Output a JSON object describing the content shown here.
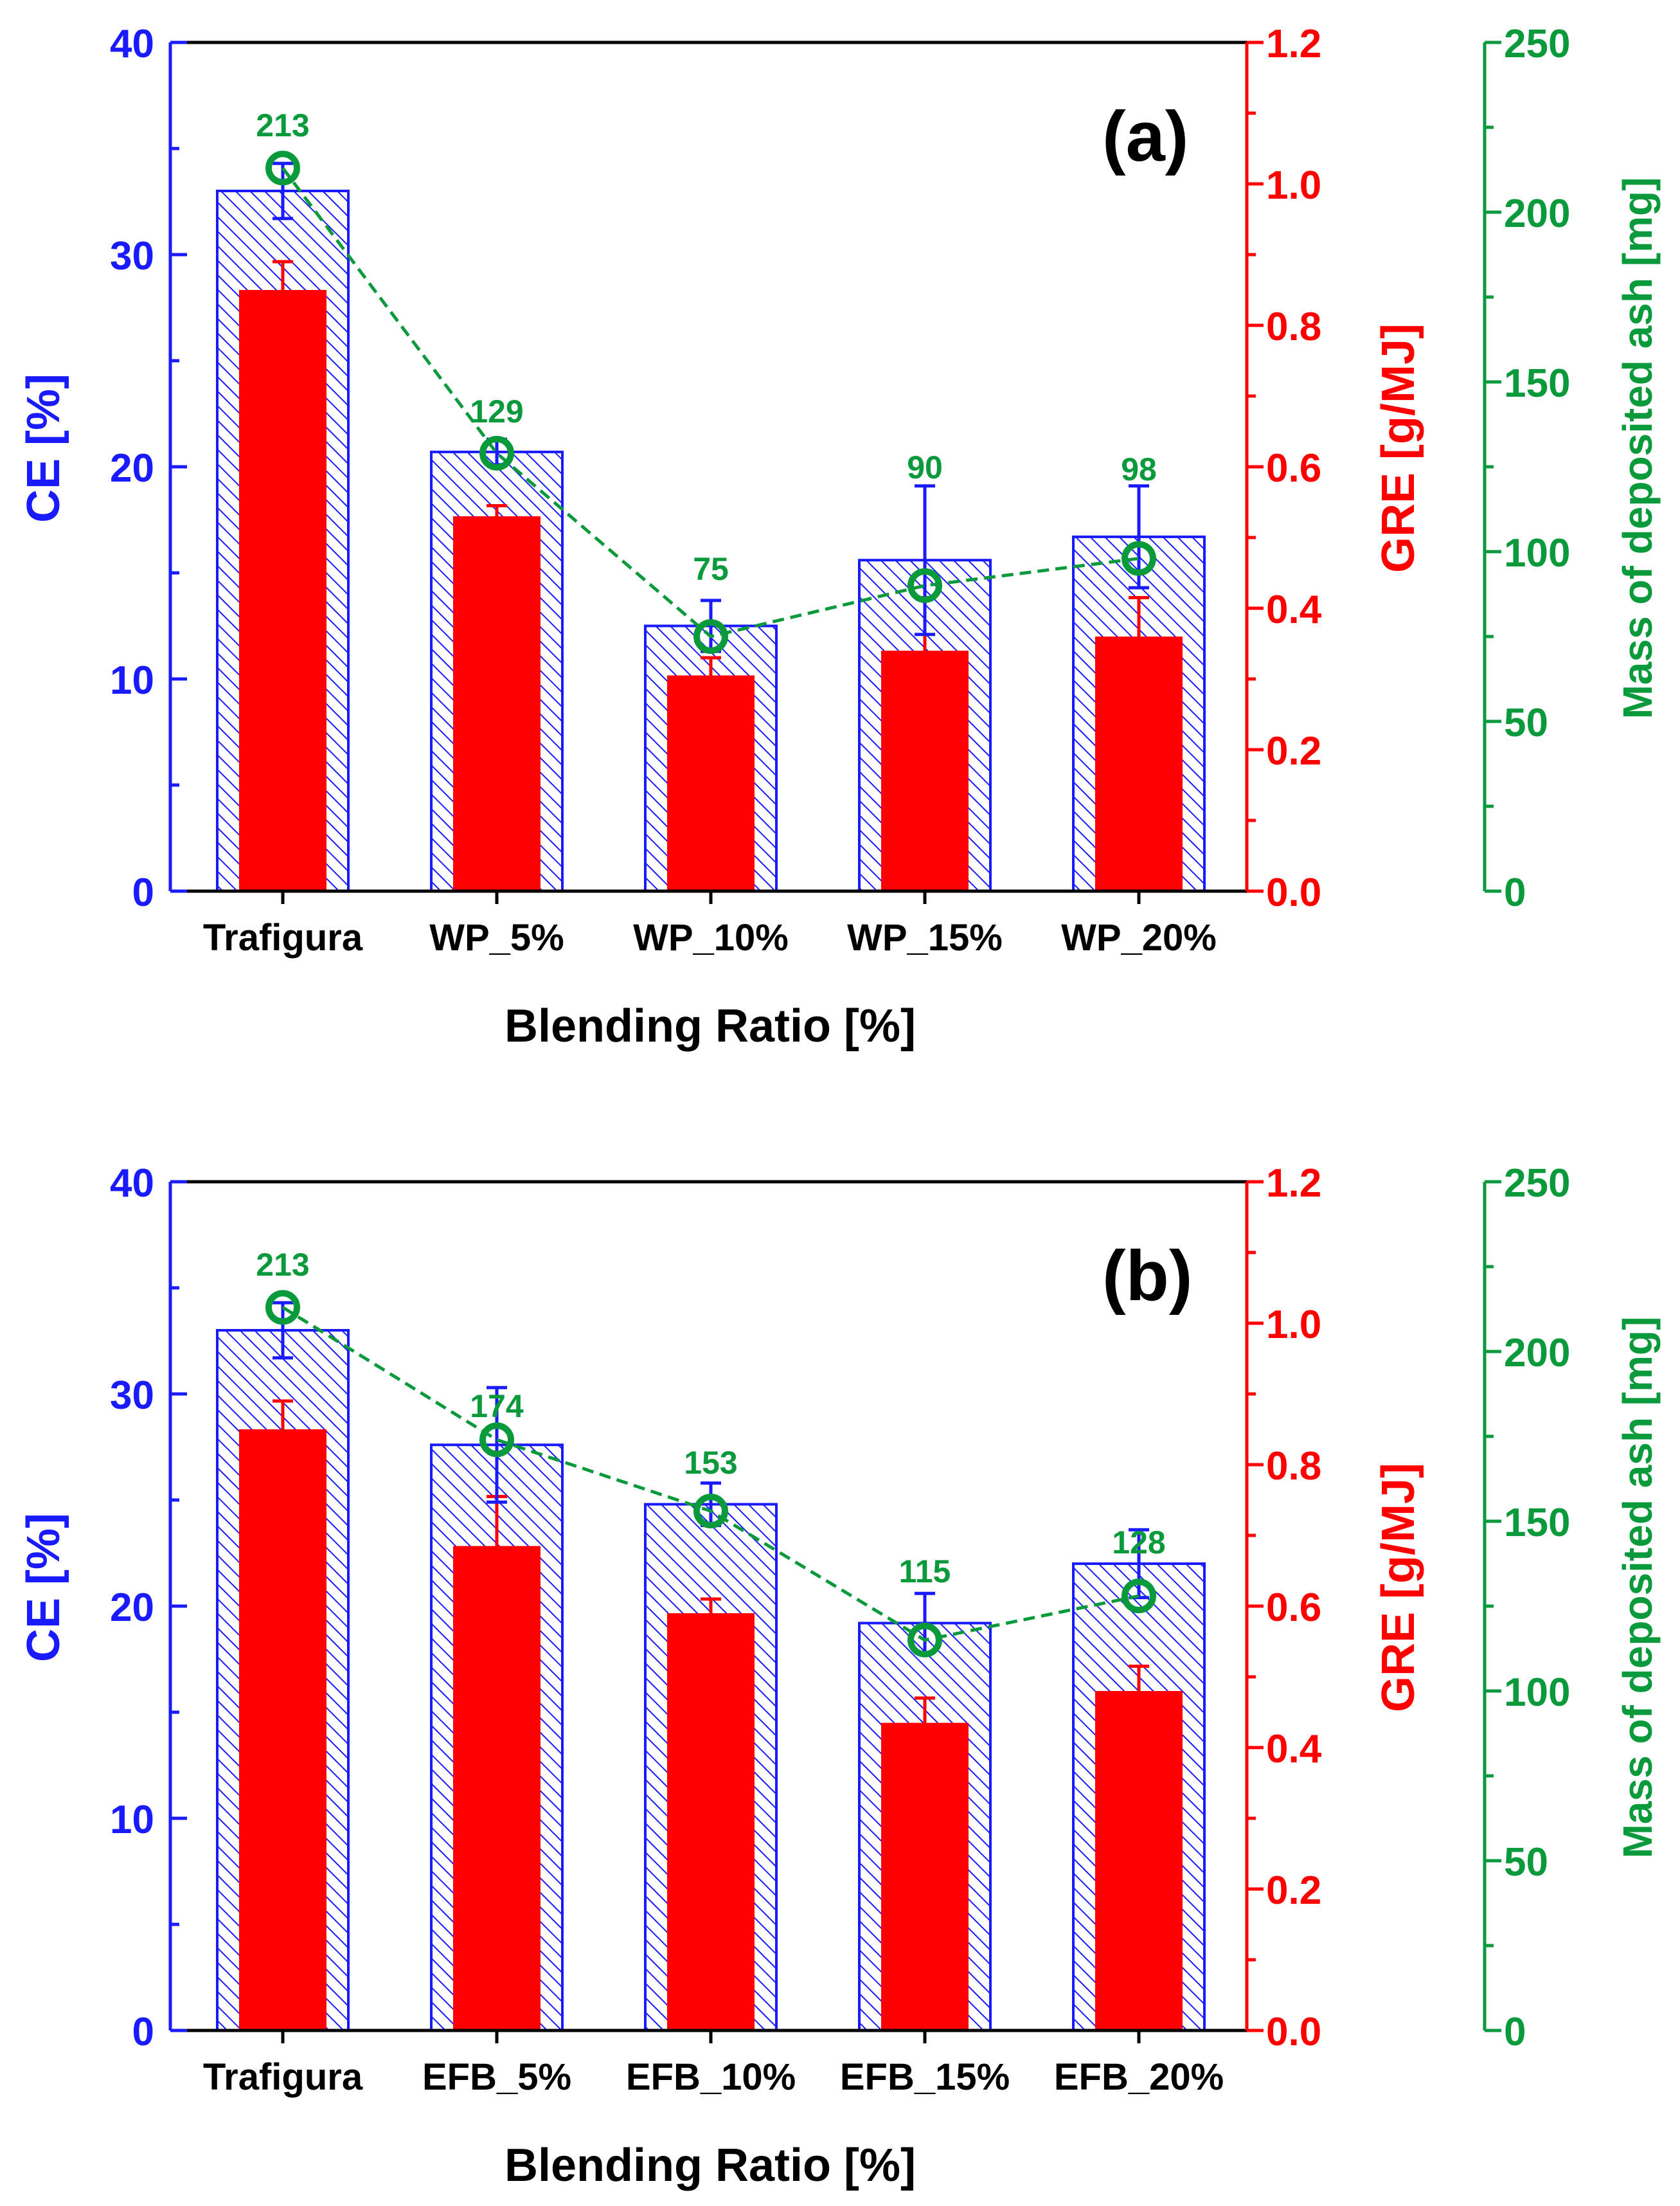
{
  "colors": {
    "ce": "#1a1aff",
    "gre": "#ff0000",
    "ash": "#0a9a3c",
    "axis": "#000000"
  },
  "chart_data": [
    {
      "type": "bar",
      "panel_label": "(a)",
      "xlabel": "Blending Ratio [%]",
      "categories": [
        "Trafigura",
        "WP_5%",
        "WP_10%",
        "WP_15%",
        "WP_20%"
      ],
      "axes": {
        "ce": {
          "label": "CE [%]",
          "range": [
            0,
            40
          ],
          "ticks": [
            0,
            10,
            20,
            30,
            40
          ],
          "tick_labels": [
            "0",
            "10",
            "20",
            "30",
            "40"
          ]
        },
        "gre": {
          "label": "GRE [g/MJ]",
          "range": [
            0,
            1.2
          ],
          "ticks": [
            0,
            0.2,
            0.4,
            0.6,
            0.8,
            1.0,
            1.2
          ],
          "tick_labels": [
            "0.0",
            "0.2",
            "0.4",
            "0.6",
            "0.8",
            "1.0",
            "1.2"
          ]
        },
        "ash": {
          "label": "Mass of deposited ash [mg]",
          "range": [
            0,
            250
          ],
          "ticks": [
            0,
            50,
            100,
            150,
            200,
            250
          ],
          "tick_labels": [
            "0",
            "50",
            "100",
            "150",
            "200",
            "250"
          ]
        }
      },
      "series": [
        {
          "key": "ce",
          "style": "hatched-bar",
          "values": [
            33.0,
            20.7,
            12.5,
            15.6,
            16.7
          ],
          "errors": [
            1.3,
            0.6,
            1.2,
            3.5,
            2.4
          ]
        },
        {
          "key": "gre",
          "style": "solid-bar",
          "values": [
            0.85,
            0.53,
            0.305,
            0.34,
            0.36
          ],
          "errors": [
            0.04,
            0.015,
            0.025,
            0.075,
            0.055
          ]
        },
        {
          "key": "ash",
          "style": "dashed-line-circle",
          "values": [
            213,
            129,
            75,
            90,
            98
          ],
          "value_labels": [
            "213",
            "129",
            "75",
            "90",
            "98"
          ]
        }
      ]
    },
    {
      "type": "bar",
      "panel_label": "(b)",
      "xlabel": "Blending Ratio [%]",
      "categories": [
        "Trafigura",
        "EFB_5%",
        "EFB_10%",
        "EFB_15%",
        "EFB_20%"
      ],
      "axes": {
        "ce": {
          "label": "CE [%]",
          "range": [
            0,
            40
          ],
          "ticks": [
            0,
            10,
            20,
            30,
            40
          ],
          "tick_labels": [
            "0",
            "10",
            "20",
            "30",
            "40"
          ]
        },
        "gre": {
          "label": "GRE [g/MJ]",
          "range": [
            0,
            1.2
          ],
          "ticks": [
            0,
            0.2,
            0.4,
            0.6,
            0.8,
            1.0,
            1.2
          ],
          "tick_labels": [
            "0.0",
            "0.2",
            "0.4",
            "0.6",
            "0.8",
            "1.0",
            "1.2"
          ]
        },
        "ash": {
          "label": "Mass of deposited ash [mg]",
          "range": [
            0,
            250
          ],
          "ticks": [
            0,
            50,
            100,
            150,
            200,
            250
          ],
          "tick_labels": [
            "0",
            "50",
            "100",
            "150",
            "200",
            "250"
          ]
        }
      },
      "series": [
        {
          "key": "ce",
          "style": "hatched-bar",
          "values": [
            33.0,
            27.6,
            24.8,
            19.2,
            22.0
          ],
          "errors": [
            1.3,
            2.7,
            1.0,
            1.4,
            1.6
          ]
        },
        {
          "key": "gre",
          "style": "solid-bar",
          "values": [
            0.85,
            0.685,
            0.59,
            0.435,
            0.48
          ],
          "errors": [
            0.04,
            0.07,
            0.02,
            0.035,
            0.035
          ]
        },
        {
          "key": "ash",
          "style": "dashed-line-circle",
          "values": [
            213,
            174,
            153,
            115,
            128
          ],
          "value_labels": [
            "213",
            "174",
            "153",
            "115",
            "128"
          ]
        }
      ]
    }
  ]
}
